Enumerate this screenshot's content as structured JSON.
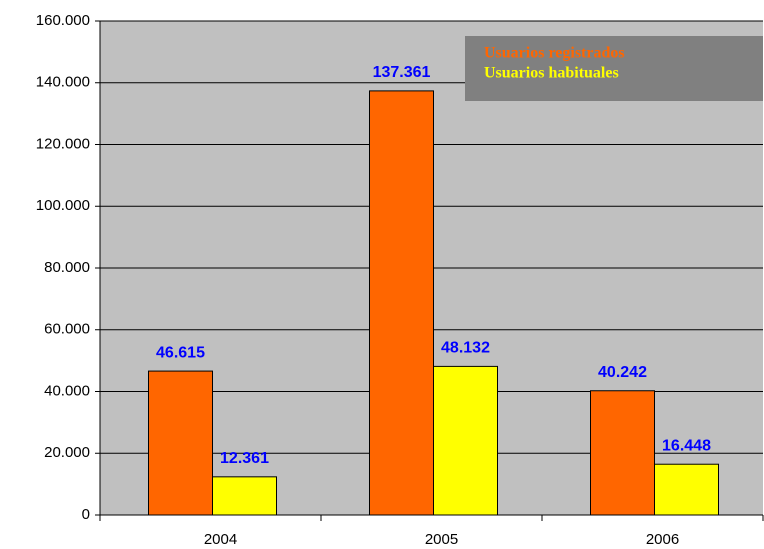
{
  "chart_data": {
    "type": "bar",
    "categories": [
      "2004",
      "2005",
      "2006"
    ],
    "series": [
      {
        "name": "Usuarios registrados",
        "color": "#ff6600",
        "values": [
          46615,
          137361,
          40242
        ],
        "value_labels": [
          "46.615",
          "137.361",
          "40.242"
        ]
      },
      {
        "name": "Usuarios habituales",
        "color": "#ffff00",
        "values": [
          12361,
          48132,
          16448
        ],
        "value_labels": [
          "12.361",
          "48.132",
          "16.448"
        ]
      }
    ],
    "ylim": [
      0,
      160000
    ],
    "yticks": [
      0,
      {
        "value": 20000,
        "label": "20.000"
      },
      {
        "value": 40000,
        "label": "40.000"
      },
      {
        "value": 60000,
        "label": "60.000"
      },
      {
        "value": 80000,
        "label": "80.000"
      },
      {
        "value": 100000,
        "label": "100.000"
      },
      {
        "value": 120000,
        "label": "120.000"
      },
      {
        "value": 140000,
        "label": "140.000"
      },
      {
        "value": 160000,
        "label": "160.000"
      }
    ],
    "grid": true,
    "legend": "top-right"
  }
}
